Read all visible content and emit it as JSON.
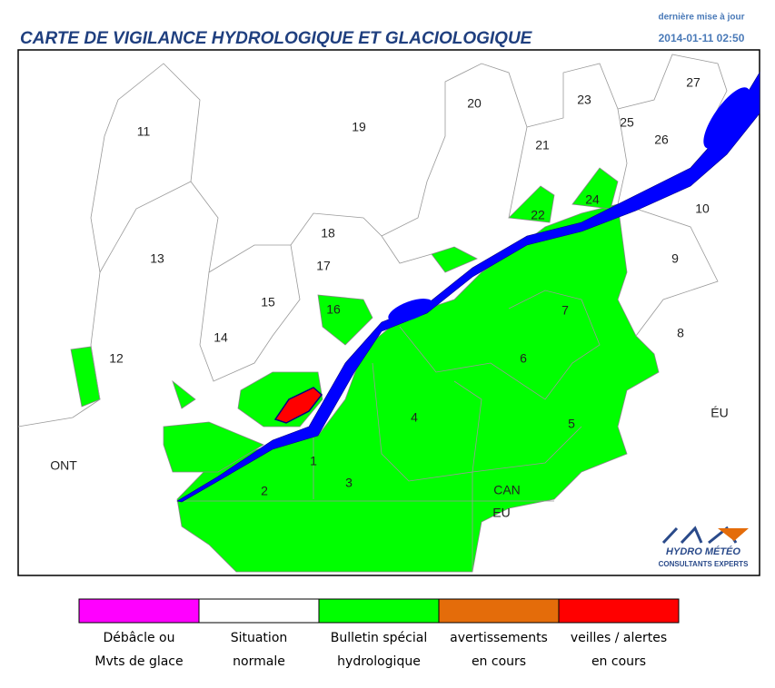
{
  "header": {
    "title": "CARTE DE VIGILANCE HYDROLOGIQUE ET GLACIOLOGIQUE",
    "update_label": "dernière mise à jour",
    "update_time": "2014-01-11 02:50"
  },
  "map": {
    "labels": [
      "11",
      "19",
      "20",
      "21",
      "23",
      "25",
      "27",
      "26",
      "10",
      "9",
      "8",
      "22",
      "24",
      "18",
      "17",
      "13",
      "15",
      "16",
      "14",
      "12",
      "7",
      "6",
      "5",
      "4",
      "3",
      "2",
      "1",
      "ONT",
      "ÉU",
      "CAN",
      "EU"
    ]
  },
  "logo": {
    "line1": "HYDRO MÉTÉO",
    "line2": "CONSULTANTS EXPERTS"
  },
  "legend": {
    "items": [
      {
        "lines": [
          "Débâcle ou",
          "Mvts de glace"
        ],
        "color": "#ff00ff"
      },
      {
        "lines": [
          "Situation",
          "normale"
        ],
        "color": "#ffffff"
      },
      {
        "lines": [
          "Bulletin spécial",
          "hydrologique"
        ],
        "color": "#00ff00"
      },
      {
        "lines": [
          "avertissements",
          "en cours"
        ],
        "color": "#e46c0a"
      },
      {
        "lines": [
          "veilles / alertes",
          "en cours"
        ],
        "color": "#ff0000"
      }
    ]
  }
}
